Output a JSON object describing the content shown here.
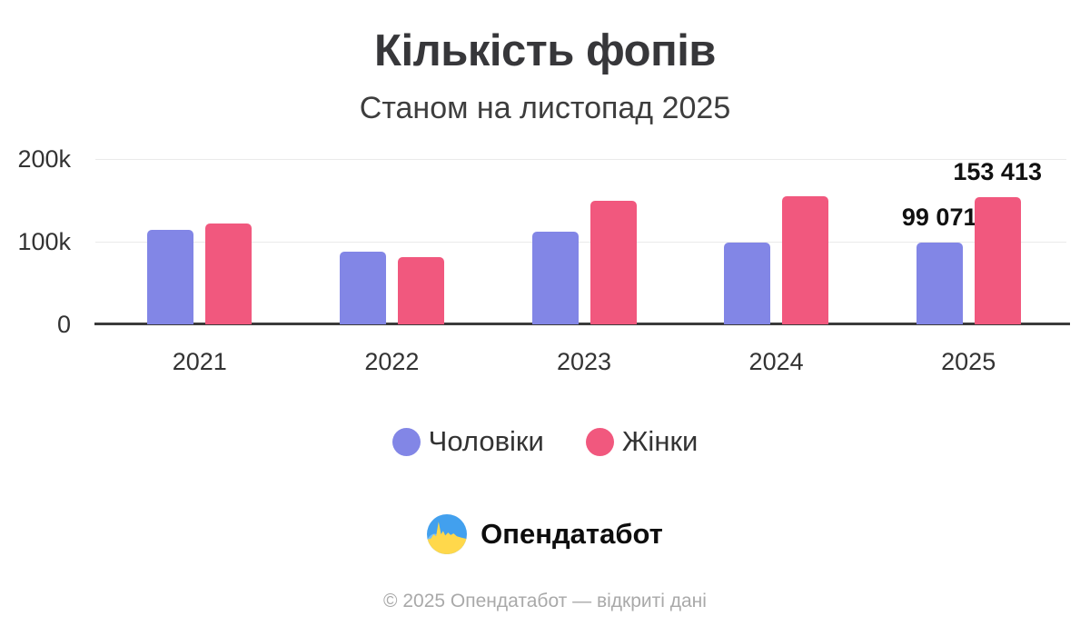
{
  "header": {
    "title": "Кількість фопів",
    "subtitle": "Станом на листопад 2025"
  },
  "chart_data": {
    "type": "bar",
    "title": "Кількість фопів",
    "subtitle": "Станом на листопад 2025",
    "categories": [
      "2021",
      "2022",
      "2023",
      "2024",
      "2025"
    ],
    "series": [
      {
        "name": "Чоловіки",
        "color": "#8286e6",
        "values": [
          114000,
          88000,
          112000,
          98500,
          99071
        ],
        "value_labels": [
          "",
          "",
          "",
          "",
          "99 071"
        ]
      },
      {
        "name": "Жінки",
        "color": "#f1587e",
        "values": [
          122000,
          81000,
          150000,
          155000,
          153413
        ],
        "value_labels": [
          "",
          "",
          "",
          "",
          "153 413"
        ]
      }
    ],
    "xlabel": "",
    "ylabel": "",
    "ylim": [
      0,
      200000
    ],
    "yticks": [
      {
        "value": 0,
        "label": "0"
      },
      {
        "value": 100000,
        "label": "100k"
      },
      {
        "value": 200000,
        "label": "200k"
      }
    ],
    "grid": true,
    "legend_position": "bottom"
  },
  "branding": {
    "logo_icon": "opendatabot-pulse-icon",
    "logo_text": "Опендатабот",
    "flag_blue": "#42a0ee",
    "flag_yellow": "#ffd84b",
    "wave_light_blue": "#8ec9f6"
  },
  "footer": {
    "copyright": "© 2025 Опендатабот — відкриті дані"
  }
}
